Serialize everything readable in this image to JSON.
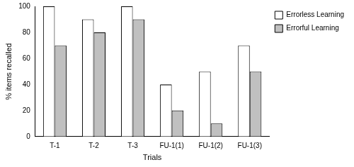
{
  "chart_data": {
    "type": "bar",
    "x_label": "Trials",
    "y_label": "% items recalled",
    "categories": [
      "T-1",
      "T-2",
      "T-3",
      "FU-1(1)",
      "FU-1(2)",
      "FU-1(3)"
    ],
    "series": [
      {
        "name": "Errorless Learning",
        "color": "#ffffff",
        "values": [
          100,
          90,
          100,
          40,
          50,
          70
        ]
      },
      {
        "name": "Errorful Learning",
        "color": "#c0c0c0",
        "values": [
          70,
          80,
          90,
          20,
          10,
          50
        ]
      }
    ],
    "ylim": [
      0,
      100
    ],
    "yticks": [
      0,
      20,
      40,
      60,
      80,
      100
    ],
    "grid": false,
    "legend": "upper right"
  }
}
